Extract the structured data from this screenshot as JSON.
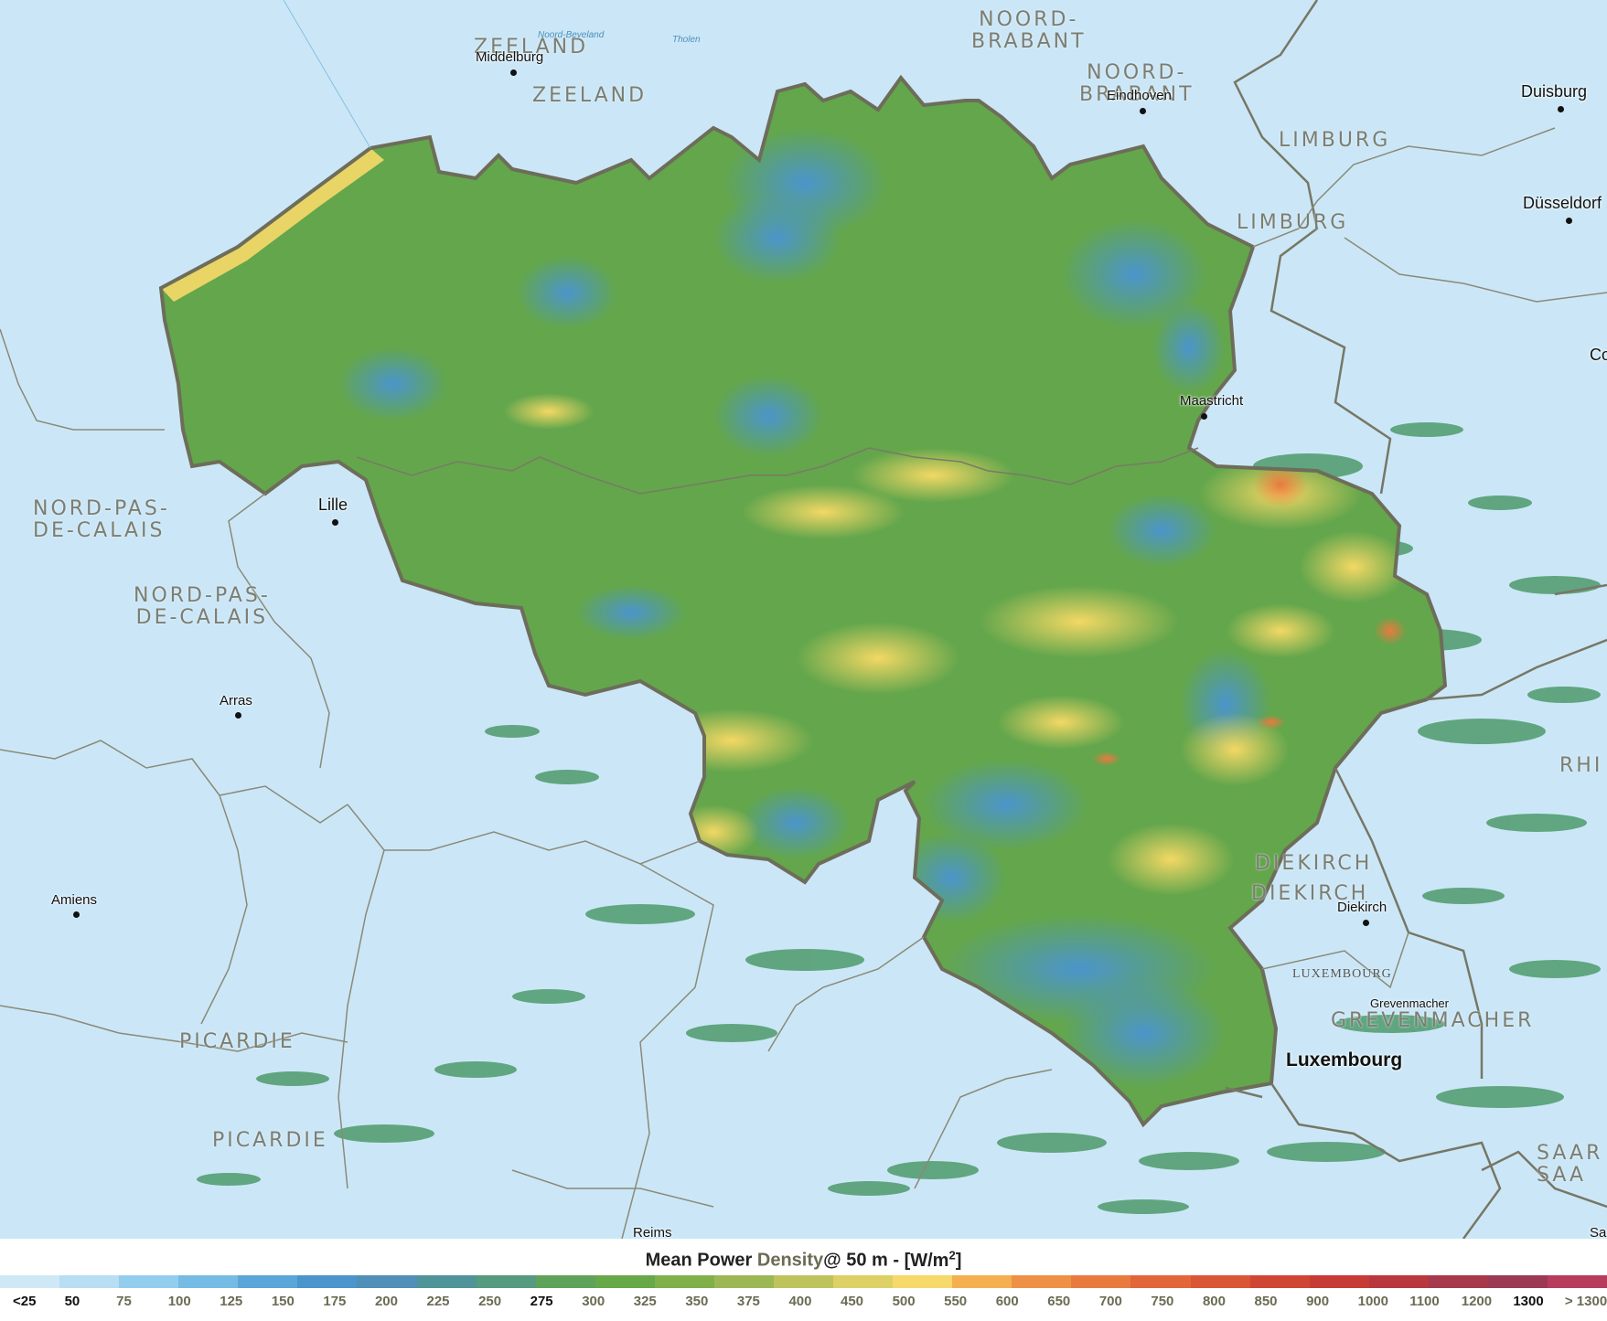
{
  "map": {
    "regions": [
      {
        "id": "zeeland-1",
        "label": "ZEELAND"
      },
      {
        "id": "zeeland-2",
        "label": "ZEELAND"
      },
      {
        "id": "noord-brabant-1",
        "label": "NOORD-\nBRABANT"
      },
      {
        "id": "noord-brabant-2",
        "label": "NOORD-\nBRABANT"
      },
      {
        "id": "limburg-1",
        "label": "LIMBURG"
      },
      {
        "id": "limburg-2",
        "label": "LIMBURG"
      },
      {
        "id": "nord-pas-1",
        "label": "NORD-PAS-\nDE-CALAIS"
      },
      {
        "id": "nord-pas-2",
        "label": "NORD-PAS-\nDE-CALAIS"
      },
      {
        "id": "picardie-1",
        "label": "PICARDIE"
      },
      {
        "id": "picardie-2",
        "label": "PICARDIE"
      },
      {
        "id": "diekirch-1",
        "label": "DIEKIRCH"
      },
      {
        "id": "diekirch-2",
        "label": "DIEKIRCH"
      },
      {
        "id": "luxembourg-region",
        "label": "LUXEMBOURG"
      },
      {
        "id": "grevenmacher-region",
        "label": "GREVENMACHER"
      },
      {
        "id": "rhein-edge",
        "label": "RHI"
      },
      {
        "id": "saar-edge",
        "label": "SAAR\nSAA"
      }
    ],
    "cities": [
      {
        "id": "middelburg",
        "label": "Middelburg"
      },
      {
        "id": "eindhoven",
        "label": "Eindhoven"
      },
      {
        "id": "duisburg",
        "label": "Duisburg"
      },
      {
        "id": "dusseldorf",
        "label": "Düsseldorf"
      },
      {
        "id": "maastricht",
        "label": "Maastricht"
      },
      {
        "id": "lille",
        "label": "Lille"
      },
      {
        "id": "arras",
        "label": "Arras"
      },
      {
        "id": "amiens",
        "label": "Amiens"
      },
      {
        "id": "reims",
        "label": "Reims"
      },
      {
        "id": "diekirch",
        "label": "Diekirch"
      },
      {
        "id": "grevenmacher",
        "label": "Grevenmacher"
      },
      {
        "id": "luxembourg",
        "label": "Luxembourg"
      },
      {
        "id": "cologne-edge",
        "label": "Co"
      },
      {
        "id": "sa-edge",
        "label": "Sa"
      }
    ],
    "water": [
      {
        "id": "noord-beveland",
        "label": "Noord-Beveland"
      },
      {
        "id": "tholen",
        "label": "Tholen"
      }
    ]
  },
  "legend": {
    "title": {
      "part1": "Mean Power",
      "part2": "Density",
      "part3": "@ 50 m -",
      "unit": "[W/m",
      "unit_sup": "2",
      "unit_close": "]"
    },
    "colors": [
      "#cfe8f6",
      "#b8def3",
      "#93cdee",
      "#76bbe3",
      "#5ba6d8",
      "#4b95cc",
      "#4f8fb8",
      "#4f9498",
      "#569a80",
      "#5fa35a",
      "#67a848",
      "#80b04a",
      "#9cb854",
      "#bec35c",
      "#ddd064",
      "#f7d86a",
      "#f4b050",
      "#ee9146",
      "#e87a3e",
      "#e2663a",
      "#d95636",
      "#cf4634",
      "#c63b35",
      "#b8383e",
      "#a8384b",
      "#9c3a56",
      "#b63d5c"
    ],
    "ticks": [
      "<25",
      "50",
      "75",
      "100",
      "125",
      "150",
      "175",
      "200",
      "225",
      "250",
      "275",
      "300",
      "325",
      "350",
      "375",
      "400",
      "450",
      "500",
      "550",
      "600",
      "650",
      "700",
      "750",
      "800",
      "850",
      "900",
      "1000",
      "1100",
      "1200",
      "1300",
      "> 1300"
    ],
    "dark_ticks": [
      "<25",
      "50",
      "275",
      "1300"
    ]
  }
}
